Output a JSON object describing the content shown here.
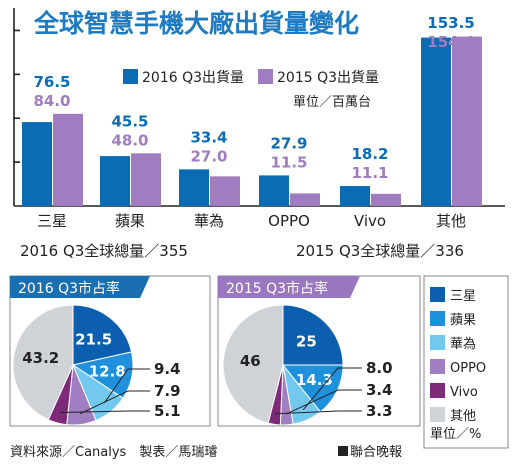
{
  "title": "全球智慧手機大廠出貨量變化",
  "legend": {
    "s2016": "2016 Q3出貨量",
    "s2015": "2015 Q3出貨量",
    "unit": "單位／百萬台"
  },
  "totals": {
    "y2016": "2016 Q3全球總量／355",
    "y2015": "2015 Q3全球總量／336"
  },
  "pie_titles": {
    "p2016": "2016  Q3市占率",
    "p2015": "2015  Q3市占率"
  },
  "pie_legend": {
    "unit": "單位／%"
  },
  "footer": {
    "source": "資料來源／Canalys　製表／馬瑞璿",
    "publisher": "聯合晚報"
  },
  "colors": {
    "title": "#1f7bc1",
    "bar2016": "#0b6cb5",
    "bar2015": "#a07cc0",
    "label2016": "#0b6cb5",
    "label2015": "#a07cc0",
    "pie_samsung": "#0b5fae",
    "pie_apple": "#1e90dc",
    "pie_huawei": "#72c8ef",
    "pie_oppo": "#9f7ec2",
    "pie_vivo": "#7d2a78",
    "pie_other": "#cfd3d8",
    "pie_header": "#1a6fb0",
    "pie_header2": "#9a78c0"
  },
  "chart_data": [
    {
      "type": "bar",
      "title": "全球智慧手機大廠出貨量變化",
      "categories": [
        "三星",
        "蘋果",
        "華為",
        "OPPO",
        "Vivo",
        "其他"
      ],
      "series": [
        {
          "name": "2016 Q3出貨量",
          "values": [
            76.5,
            45.5,
            33.4,
            27.9,
            18.2,
            153.5
          ]
        },
        {
          "name": "2015 Q3出貨量",
          "values": [
            84.0,
            48.0,
            27.0,
            11.5,
            11.1,
            154.4
          ]
        }
      ],
      "value_labels_2016": [
        "76.5",
        "45.5",
        "33.4",
        "27.9",
        "18.2",
        "153.5"
      ],
      "value_labels_2015": [
        "84.0",
        "48.0",
        "27.0",
        "11.5",
        "11.1",
        "154.4"
      ],
      "ylim": [
        0,
        175
      ],
      "yticks": [
        0,
        40,
        80,
        120,
        160
      ],
      "legend_placement": "top-right",
      "grid": false
    },
    {
      "type": "pie",
      "title": "2016  Q3市占率",
      "labels": [
        "三星",
        "蘋果",
        "華為",
        "OPPO",
        "Vivo",
        "其他"
      ],
      "values": [
        21.5,
        12.8,
        9.4,
        7.9,
        5.1,
        43.2
      ],
      "value_labels": [
        "21.5",
        "12.8",
        "9.4",
        "7.9",
        "5.1",
        "43.2"
      ]
    },
    {
      "type": "pie",
      "title": "2015  Q3市占率",
      "labels": [
        "三星",
        "蘋果",
        "華為",
        "OPPO",
        "Vivo",
        "其他"
      ],
      "values": [
        25,
        14.3,
        8.0,
        3.4,
        3.3,
        46
      ],
      "value_labels": [
        "25",
        "14.3",
        "8.0",
        "3.4",
        "3.3",
        "46"
      ]
    }
  ]
}
